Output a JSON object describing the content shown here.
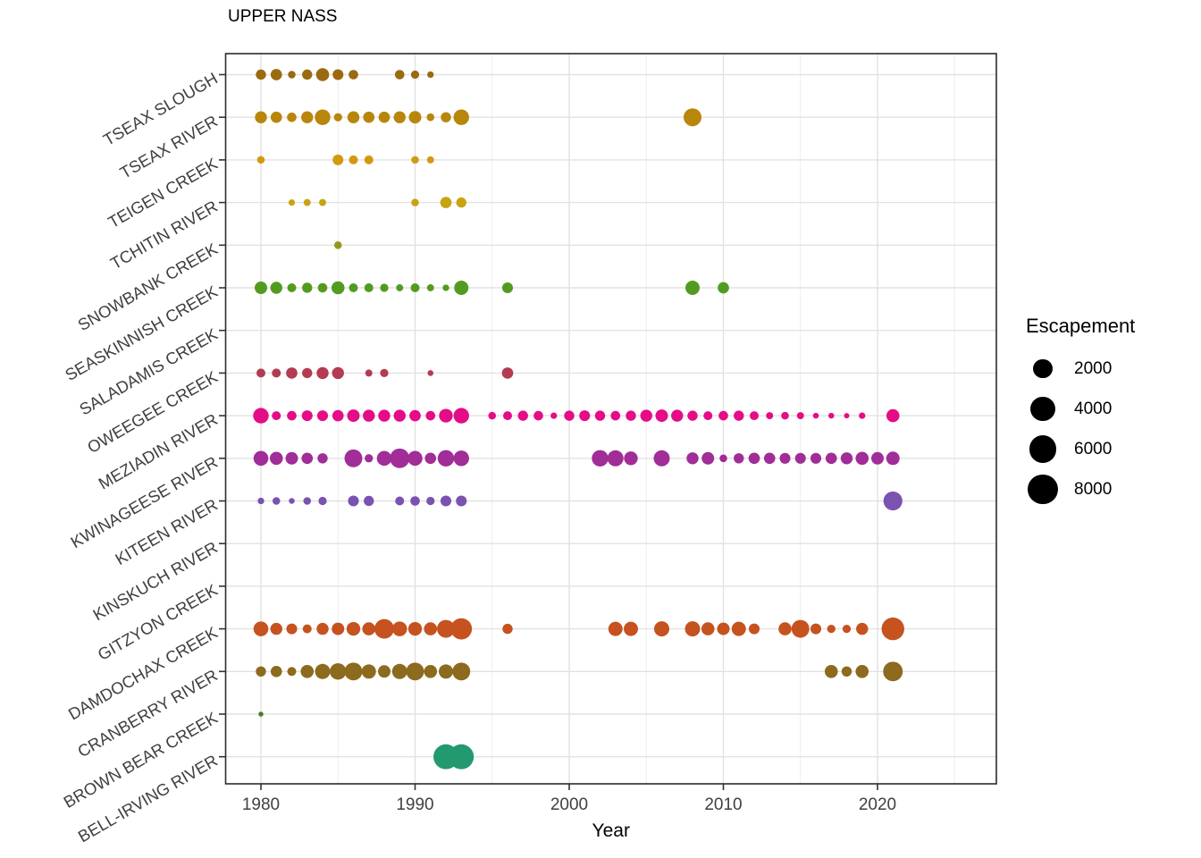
{
  "chart_data": {
    "type": "scatter",
    "title": "UPPER NASS",
    "xlabel": "Year",
    "ylabel": "",
    "x_ticks": [
      1980,
      1990,
      2000,
      2010,
      2020
    ],
    "x_range": [
      1977.6,
      2027.7
    ],
    "grid": "on",
    "points_format": "[year, escapement]",
    "size_legend": {
      "title": "Escapement",
      "values": [
        2000,
        4000,
        6000,
        8000
      ],
      "dot_color": "#000000"
    },
    "series": [
      {
        "name": "TSEAX SLOUGH",
        "color": "#9A6A10",
        "points": [
          [
            1980,
            250
          ],
          [
            1981,
            350
          ],
          [
            1982,
            100
          ],
          [
            1983,
            250
          ],
          [
            1984,
            550
          ],
          [
            1985,
            300
          ],
          [
            1986,
            200
          ],
          [
            1989,
            200
          ],
          [
            1990,
            130
          ],
          [
            1991,
            60
          ]
        ]
      },
      {
        "name": "TSEAX RIVER",
        "color": "#B8860B",
        "points": [
          [
            1980,
            420
          ],
          [
            1981,
            350
          ],
          [
            1982,
            200
          ],
          [
            1983,
            420
          ],
          [
            1984,
            960
          ],
          [
            1985,
            130
          ],
          [
            1986,
            420
          ],
          [
            1987,
            350
          ],
          [
            1988,
            350
          ],
          [
            1989,
            420
          ],
          [
            1990,
            480
          ],
          [
            1991,
            100
          ],
          [
            1992,
            250
          ],
          [
            1993,
            960
          ],
          [
            2008,
            1500
          ]
        ]
      },
      {
        "name": "TEIGEN CREEK",
        "color": "#D19A12",
        "points": [
          [
            1980,
            100
          ],
          [
            1985,
            300
          ],
          [
            1986,
            165
          ],
          [
            1987,
            165
          ],
          [
            1990,
            100
          ],
          [
            1991,
            80
          ]
        ]
      },
      {
        "name": "TCHITIN RIVER",
        "color": "#C7A411",
        "points": [
          [
            1982,
            60
          ],
          [
            1983,
            80
          ],
          [
            1984,
            80
          ],
          [
            1990,
            100
          ],
          [
            1992,
            350
          ],
          [
            1993,
            250
          ]
        ]
      },
      {
        "name": "SNOWBANK CREEK",
        "color": "#94971B",
        "points": [
          [
            1985,
            100
          ]
        ]
      },
      {
        "name": "SEASKINNISH CREEK",
        "color": "#539B20",
        "points": [
          [
            1980,
            480
          ],
          [
            1981,
            420
          ],
          [
            1982,
            165
          ],
          [
            1983,
            250
          ],
          [
            1984,
            200
          ],
          [
            1985,
            550
          ],
          [
            1986,
            165
          ],
          [
            1987,
            165
          ],
          [
            1988,
            130
          ],
          [
            1989,
            80
          ],
          [
            1990,
            165
          ],
          [
            1991,
            80
          ],
          [
            1992,
            60
          ],
          [
            1993,
            730
          ],
          [
            1996,
            300
          ],
          [
            2008,
            730
          ],
          [
            2010,
            350
          ]
        ]
      },
      {
        "name": "SALADAMIS CREEK",
        "color": null,
        "points": []
      },
      {
        "name": "OWEEGEE CREEK",
        "color": "#B33B52",
        "points": [
          [
            1980,
            165
          ],
          [
            1981,
            165
          ],
          [
            1982,
            350
          ],
          [
            1983,
            250
          ],
          [
            1984,
            420
          ],
          [
            1985,
            420
          ],
          [
            1987,
            80
          ],
          [
            1988,
            130
          ],
          [
            1991,
            42
          ],
          [
            1996,
            350
          ]
        ]
      },
      {
        "name": "MEZIADIN RIVER",
        "color": "#E50C87",
        "points": [
          [
            1980,
            960
          ],
          [
            1981,
            165
          ],
          [
            1982,
            200
          ],
          [
            1983,
            300
          ],
          [
            1984,
            300
          ],
          [
            1985,
            350
          ],
          [
            1986,
            480
          ],
          [
            1987,
            420
          ],
          [
            1988,
            420
          ],
          [
            1989,
            420
          ],
          [
            1990,
            350
          ],
          [
            1991,
            200
          ],
          [
            1992,
            640
          ],
          [
            1993,
            960
          ],
          [
            1995,
            100
          ],
          [
            1996,
            165
          ],
          [
            1997,
            250
          ],
          [
            1998,
            200
          ],
          [
            1999,
            60
          ],
          [
            2000,
            250
          ],
          [
            2001,
            300
          ],
          [
            2002,
            250
          ],
          [
            2003,
            200
          ],
          [
            2004,
            250
          ],
          [
            2005,
            420
          ],
          [
            2006,
            480
          ],
          [
            2007,
            420
          ],
          [
            2008,
            250
          ],
          [
            2009,
            165
          ],
          [
            2010,
            200
          ],
          [
            2011,
            250
          ],
          [
            2012,
            165
          ],
          [
            2013,
            80
          ],
          [
            2014,
            100
          ],
          [
            2015,
            80
          ],
          [
            2016,
            42
          ],
          [
            2017,
            42
          ],
          [
            2018,
            32
          ],
          [
            2019,
            60
          ],
          [
            2021,
            550
          ]
        ]
      },
      {
        "name": "KWINAGEESE RIVER",
        "color": "#A02D98",
        "points": [
          [
            1980,
            820
          ],
          [
            1981,
            550
          ],
          [
            1982,
            480
          ],
          [
            1983,
            350
          ],
          [
            1984,
            250
          ],
          [
            1986,
            1480
          ],
          [
            1987,
            130
          ],
          [
            1988,
            820
          ],
          [
            1989,
            2000
          ],
          [
            1990,
            820
          ],
          [
            1991,
            350
          ],
          [
            1992,
            1150
          ],
          [
            1993,
            960
          ],
          [
            2002,
            1150
          ],
          [
            2003,
            1070
          ],
          [
            2004,
            640
          ],
          [
            2006,
            1070
          ],
          [
            2008,
            420
          ],
          [
            2009,
            480
          ],
          [
            2010,
            100
          ],
          [
            2011,
            250
          ],
          [
            2012,
            350
          ],
          [
            2013,
            350
          ],
          [
            2014,
            300
          ],
          [
            2015,
            300
          ],
          [
            2016,
            300
          ],
          [
            2017,
            350
          ],
          [
            2018,
            420
          ],
          [
            2019,
            550
          ],
          [
            2020,
            480
          ],
          [
            2021,
            600
          ]
        ]
      },
      {
        "name": "KITEEN RIVER",
        "color": "#7A52B0",
        "points": [
          [
            1980,
            60
          ],
          [
            1981,
            100
          ],
          [
            1982,
            42
          ],
          [
            1983,
            100
          ],
          [
            1984,
            130
          ],
          [
            1986,
            300
          ],
          [
            1987,
            250
          ],
          [
            1989,
            165
          ],
          [
            1990,
            200
          ],
          [
            1991,
            130
          ],
          [
            1992,
            300
          ],
          [
            1993,
            300
          ],
          [
            2021,
            1800
          ]
        ]
      },
      {
        "name": "KINSKUCH RIVER",
        "color": null,
        "points": []
      },
      {
        "name": "GITZYON CREEK",
        "color": null,
        "points": []
      },
      {
        "name": "DAMDOCHAX CREEK",
        "color": "#C5521F",
        "points": [
          [
            1980,
            820
          ],
          [
            1981,
            420
          ],
          [
            1982,
            300
          ],
          [
            1983,
            165
          ],
          [
            1984,
            420
          ],
          [
            1985,
            480
          ],
          [
            1986,
            640
          ],
          [
            1987,
            550
          ],
          [
            1988,
            2000
          ],
          [
            1989,
            820
          ],
          [
            1990,
            640
          ],
          [
            1991,
            550
          ],
          [
            1992,
            1480
          ],
          [
            1993,
            2600
          ],
          [
            1996,
            250
          ],
          [
            2003,
            730
          ],
          [
            2004,
            730
          ],
          [
            2006,
            890
          ],
          [
            2008,
            890
          ],
          [
            2009,
            550
          ],
          [
            2010,
            480
          ],
          [
            2011,
            730
          ],
          [
            2012,
            300
          ],
          [
            2014,
            550
          ],
          [
            2015,
            1480
          ],
          [
            2016,
            300
          ],
          [
            2017,
            130
          ],
          [
            2018,
            130
          ],
          [
            2019,
            420
          ],
          [
            2021,
            3200
          ]
        ]
      },
      {
        "name": "CRANBERRY RIVER",
        "color": "#8C6A1E",
        "points": [
          [
            1980,
            250
          ],
          [
            1981,
            350
          ],
          [
            1982,
            165
          ],
          [
            1983,
            550
          ],
          [
            1984,
            890
          ],
          [
            1985,
            1150
          ],
          [
            1986,
            1480
          ],
          [
            1987,
            730
          ],
          [
            1988,
            480
          ],
          [
            1989,
            890
          ],
          [
            1990,
            1480
          ],
          [
            1991,
            550
          ],
          [
            1992,
            730
          ],
          [
            1993,
            1480
          ],
          [
            2017,
            550
          ],
          [
            2018,
            250
          ],
          [
            2019,
            550
          ],
          [
            2021,
            2000
          ]
        ]
      },
      {
        "name": "BROWN BEAR CREEK",
        "color": "#4C7C30",
        "points": [
          [
            1980,
            25
          ]
        ]
      },
      {
        "name": "BELL-IRVING RIVER",
        "color": "#22996E",
        "points": [
          [
            1992,
            4300
          ],
          [
            1993,
            4300
          ]
        ]
      }
    ]
  },
  "style": {
    "panel_border_color": "#2b2b2b",
    "major_grid_color": "#e2e2e2",
    "minor_grid_color": "#ececec",
    "tick_color": "#333333",
    "tick_label_color": "#404040"
  }
}
